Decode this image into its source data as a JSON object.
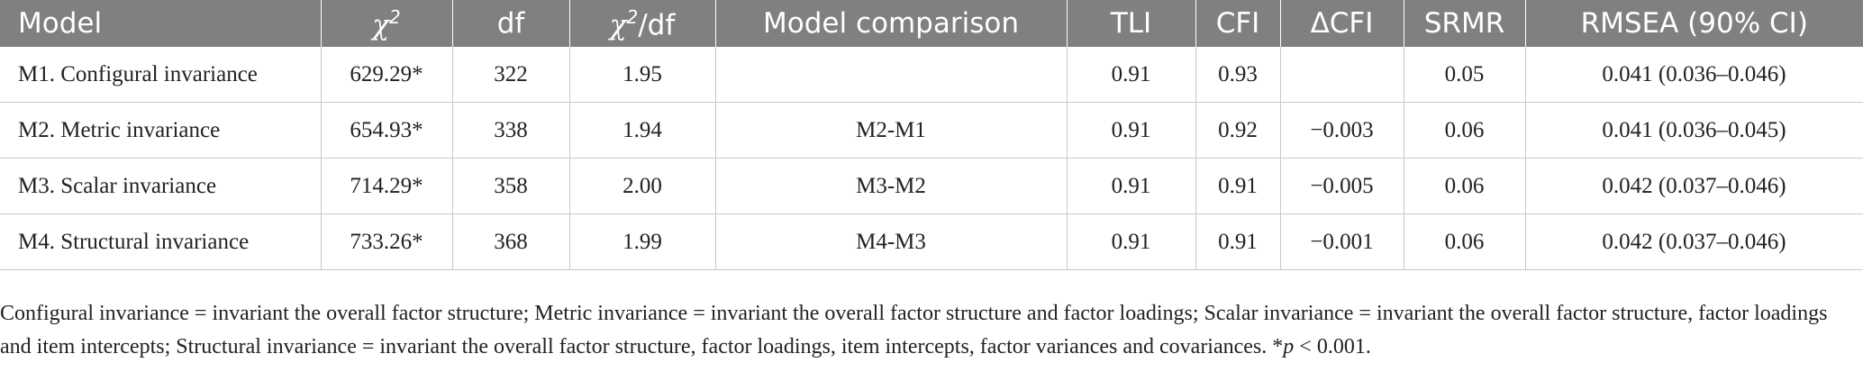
{
  "table": {
    "headers": {
      "model": "Model",
      "chi2_symbol": "χ",
      "chi2_sup": "2",
      "df": "df",
      "chi2df_symbol": "χ",
      "chi2df_sup": "2",
      "chi2df_suffix": "/df",
      "comparison": "Model comparison",
      "tli": "TLI",
      "cfi": "CFI",
      "dcfi": "ΔCFI",
      "srmr": "SRMR",
      "rmsea": "RMSEA (90% CI)"
    },
    "rows": [
      {
        "model": "M1. Configural invariance",
        "chi2": "629.29*",
        "df": "322",
        "chi2df": "1.95",
        "comparison": "",
        "tli": "0.91",
        "cfi": "0.93",
        "dcfi": "",
        "srmr": "0.05",
        "rmsea": "0.041 (0.036–0.046)"
      },
      {
        "model": "M2. Metric invariance",
        "chi2": "654.93*",
        "df": "338",
        "chi2df": "1.94",
        "comparison": "M2-M1",
        "tli": "0.91",
        "cfi": "0.92",
        "dcfi": "−0.003",
        "srmr": "0.06",
        "rmsea": "0.041 (0.036–0.045)"
      },
      {
        "model": "M3. Scalar invariance",
        "chi2": "714.29*",
        "df": "358",
        "chi2df": "2.00",
        "comparison": "M3-M2",
        "tli": "0.91",
        "cfi": "0.91",
        "dcfi": "−0.005",
        "srmr": "0.06",
        "rmsea": "0.042 (0.037–0.046)"
      },
      {
        "model": "M4. Structural invariance",
        "chi2": "733.26*",
        "df": "368",
        "chi2df": "1.99",
        "comparison": "M4-M3",
        "tli": "0.91",
        "cfi": "0.91",
        "dcfi": "−0.001",
        "srmr": "0.06",
        "rmsea": "0.042 (0.037–0.046)"
      }
    ]
  },
  "footnote": {
    "text": "Configural invariance = invariant the overall factor structure; Metric invariance = invariant the overall factor structure and factor loadings; Scalar invariance = invariant the overall factor structure, factor loadings and item intercepts; Structural invariance = invariant the overall factor structure, factor loadings, item intercepts, factor variances and covariances. *",
    "p_symbol": "p",
    "p_value": " < 0.001."
  }
}
